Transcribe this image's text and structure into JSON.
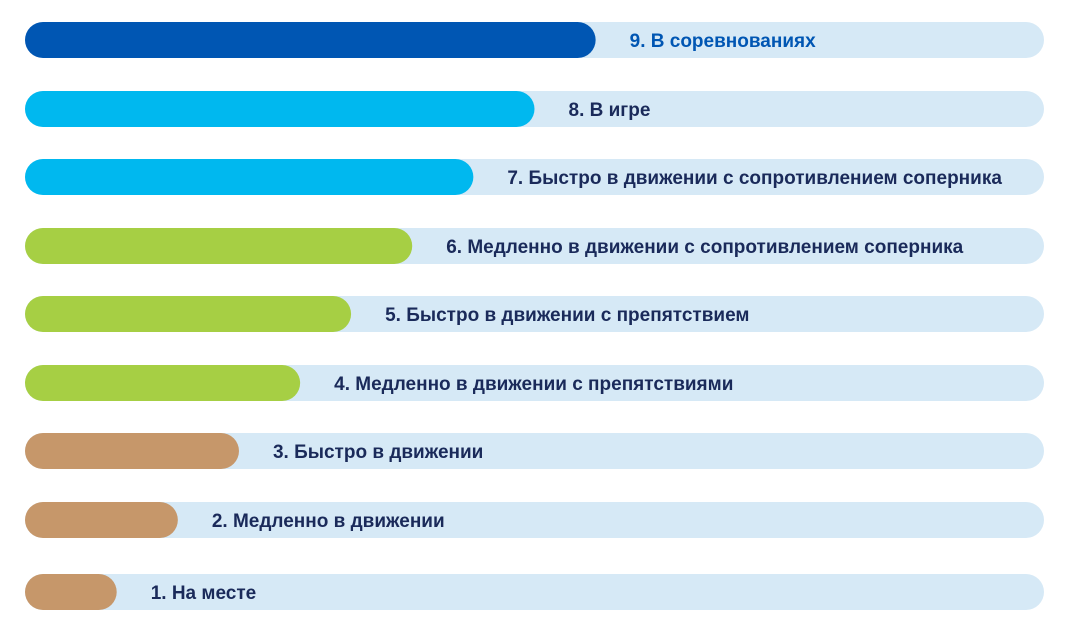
{
  "chart_data": {
    "type": "bar",
    "orientation": "horizontal",
    "categories": [
      "9. В соревнованиях",
      "8. В игре",
      "7. Быстро в движении с сопротивлением соперника",
      "6. Медленно в движении с сопротивлением соперника",
      "5. Быстро в движении с препятствием",
      "4. Медленно в движении с препятствиями",
      "3. Быстро в движении",
      "2. Медленно в движении",
      "1. На месте"
    ],
    "values": [
      56,
      50,
      44,
      38,
      32,
      27,
      21,
      15,
      9
    ],
    "xlim": [
      0,
      100
    ],
    "grid": false,
    "legend": "none",
    "title": "",
    "xlabel": "",
    "ylabel": ""
  },
  "colors": {
    "track": "#d6e9f6",
    "bars": [
      "#0056b3",
      "#00b8ef",
      "#00b8ef",
      "#a6cf44",
      "#a6cf44",
      "#a6cf44",
      "#c6976a",
      "#c6976a",
      "#c6976a"
    ],
    "labels": [
      "#0056b3",
      "#1a2a5a",
      "#1a2a5a",
      "#1a2a5a",
      "#1a2a5a",
      "#1a2a5a",
      "#1a2a5a",
      "#1a2a5a",
      "#1a2a5a"
    ]
  }
}
